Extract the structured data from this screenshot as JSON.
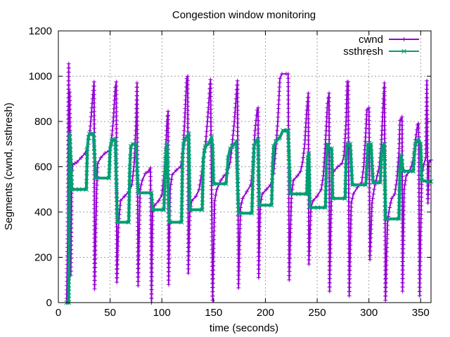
{
  "chart_data": {
    "type": "line",
    "title": "Congestion window monitoring",
    "xlabel": "time (seconds)",
    "ylabel": "Segments (cwnd, ssthresh)",
    "xlim": [
      0,
      360
    ],
    "ylim": [
      0,
      1200
    ],
    "xticks": [
      0,
      50,
      100,
      150,
      200,
      250,
      300,
      350
    ],
    "yticks": [
      0,
      200,
      400,
      600,
      800,
      1000,
      1200
    ],
    "grid": true,
    "legend_position": "top-right",
    "series": [
      {
        "name": "cwnd",
        "color": "#9400d3",
        "marker": "plus",
        "points": [
          [
            8,
            0
          ],
          [
            9,
            300
          ],
          [
            10,
            1055
          ],
          [
            10.3,
            420
          ],
          [
            11,
            930
          ],
          [
            12,
            120
          ],
          [
            13,
            560
          ],
          [
            14,
            610
          ],
          [
            16,
            615
          ],
          [
            18,
            620
          ],
          [
            22,
            640
          ],
          [
            26,
            660
          ],
          [
            29,
            700
          ],
          [
            31,
            780
          ],
          [
            33,
            900
          ],
          [
            34.5,
            975
          ],
          [
            35,
            60
          ],
          [
            37,
            500
          ],
          [
            38,
            615
          ],
          [
            41,
            640
          ],
          [
            45,
            660
          ],
          [
            49,
            670
          ],
          [
            51,
            700
          ],
          [
            53,
            800
          ],
          [
            55,
            950
          ],
          [
            56,
            975
          ],
          [
            56.5,
            90
          ],
          [
            58,
            330
          ],
          [
            60,
            450
          ],
          [
            64,
            470
          ],
          [
            68,
            490
          ],
          [
            71,
            520
          ],
          [
            73,
            600
          ],
          [
            75,
            780
          ],
          [
            76,
            970
          ],
          [
            77,
            75
          ],
          [
            79,
            500
          ],
          [
            81,
            540
          ],
          [
            84,
            570
          ],
          [
            87,
            580
          ],
          [
            89,
            595
          ],
          [
            90,
            0
          ],
          [
            91,
            400
          ],
          [
            93,
            430
          ],
          [
            97,
            450
          ],
          [
            100,
            475
          ],
          [
            102,
            560
          ],
          [
            104,
            700
          ],
          [
            105,
            800
          ],
          [
            106,
            845
          ],
          [
            106.5,
            80
          ],
          [
            108,
            500
          ],
          [
            110,
            565
          ],
          [
            114,
            585
          ],
          [
            118,
            600
          ],
          [
            120,
            640
          ],
          [
            122,
            800
          ],
          [
            124,
            990
          ],
          [
            125,
            1000
          ],
          [
            125.5,
            130
          ],
          [
            127,
            400
          ],
          [
            129,
            450
          ],
          [
            133,
            470
          ],
          [
            136,
            500
          ],
          [
            138,
            560
          ],
          [
            140,
            620
          ],
          [
            142,
            690
          ],
          [
            144,
            800
          ],
          [
            147,
            985
          ],
          [
            149,
            10
          ],
          [
            151,
            450
          ],
          [
            153,
            500
          ],
          [
            157,
            540
          ],
          [
            160,
            560
          ],
          [
            163,
            570
          ],
          [
            166,
            620
          ],
          [
            168,
            700
          ],
          [
            170,
            800
          ],
          [
            173,
            980
          ],
          [
            174,
            65
          ],
          [
            176,
            420
          ],
          [
            178,
            460
          ],
          [
            182,
            490
          ],
          [
            186,
            520
          ],
          [
            188,
            600
          ],
          [
            190,
            760
          ],
          [
            192,
            850
          ],
          [
            193,
            860
          ],
          [
            193.5,
            110
          ],
          [
            195,
            430
          ],
          [
            197,
            480
          ],
          [
            201,
            500
          ],
          [
            205,
            520
          ],
          [
            208,
            570
          ],
          [
            210,
            680
          ],
          [
            212,
            800
          ],
          [
            214,
            990
          ],
          [
            216,
            1010
          ],
          [
            220,
            1010
          ],
          [
            222,
            1010
          ],
          [
            223,
            100
          ],
          [
            225,
            460
          ],
          [
            227,
            540
          ],
          [
            231,
            560
          ],
          [
            234,
            580
          ],
          [
            236,
            620
          ],
          [
            238,
            700
          ],
          [
            240,
            850
          ],
          [
            241.5,
            925
          ],
          [
            242,
            170
          ],
          [
            244,
            420
          ],
          [
            246,
            450
          ],
          [
            250,
            470
          ],
          [
            254,
            500
          ],
          [
            256,
            560
          ],
          [
            258,
            700
          ],
          [
            260,
            880
          ],
          [
            261.5,
            925
          ],
          [
            262,
            50
          ],
          [
            264,
            540
          ],
          [
            266,
            580
          ],
          [
            270,
            600
          ],
          [
            274,
            615
          ],
          [
            276,
            650
          ],
          [
            278,
            800
          ],
          [
            279,
            975
          ],
          [
            280,
            975
          ],
          [
            281,
            30
          ],
          [
            283,
            440
          ],
          [
            285,
            480
          ],
          [
            289,
            510
          ],
          [
            293,
            530
          ],
          [
            295,
            600
          ],
          [
            297,
            750
          ],
          [
            298,
            850
          ],
          [
            300,
            860
          ],
          [
            301,
            190
          ],
          [
            303,
            440
          ],
          [
            305,
            500
          ],
          [
            308,
            560
          ],
          [
            310,
            600
          ],
          [
            312,
            700
          ],
          [
            314,
            900
          ],
          [
            315,
            970
          ],
          [
            316,
            10
          ],
          [
            318,
            360
          ],
          [
            320,
            420
          ],
          [
            322,
            460
          ],
          [
            325,
            480
          ],
          [
            327,
            540
          ],
          [
            329,
            660
          ],
          [
            330,
            805
          ],
          [
            332,
            820
          ],
          [
            332.5,
            50
          ],
          [
            334,
            500
          ],
          [
            336,
            560
          ],
          [
            339,
            580
          ],
          [
            341,
            600
          ],
          [
            343,
            640
          ],
          [
            345,
            720
          ],
          [
            347,
            785
          ],
          [
            348,
            790
          ],
          [
            349,
            30
          ],
          [
            351,
            560
          ],
          [
            353,
            610
          ],
          [
            355,
            640
          ],
          [
            356,
            980
          ],
          [
            357,
            440
          ],
          [
            358,
            620
          ],
          [
            360,
            630
          ]
        ]
      },
      {
        "name": "ssthresh",
        "color": "#009e73",
        "marker": "cross",
        "points": [
          [
            8,
            0
          ],
          [
            10,
            0
          ],
          [
            11,
            745
          ],
          [
            12,
            640
          ],
          [
            13,
            500
          ],
          [
            27,
            500
          ],
          [
            28,
            680
          ],
          [
            29,
            730
          ],
          [
            30,
            745
          ],
          [
            34,
            745
          ],
          [
            36,
            550
          ],
          [
            49,
            550
          ],
          [
            50,
            680
          ],
          [
            51,
            700
          ],
          [
            52,
            720
          ],
          [
            55,
            720
          ],
          [
            57,
            355
          ],
          [
            68,
            355
          ],
          [
            69,
            600
          ],
          [
            70,
            690
          ],
          [
            72,
            700
          ],
          [
            75,
            700
          ],
          [
            77,
            485
          ],
          [
            90,
            485
          ],
          [
            91,
            410
          ],
          [
            102,
            410
          ],
          [
            103,
            560
          ],
          [
            104,
            680
          ],
          [
            105,
            700
          ],
          [
            107,
            355
          ],
          [
            119,
            355
          ],
          [
            120,
            650
          ],
          [
            121,
            700
          ],
          [
            122,
            720
          ],
          [
            126,
            745
          ],
          [
            127,
            410
          ],
          [
            139,
            410
          ],
          [
            140,
            630
          ],
          [
            141,
            670
          ],
          [
            142,
            690
          ],
          [
            145,
            700
          ],
          [
            148,
            730
          ],
          [
            149,
            690
          ],
          [
            150,
            525
          ],
          [
            162,
            525
          ],
          [
            163,
            580
          ],
          [
            164,
            640
          ],
          [
            166,
            680
          ],
          [
            168,
            690
          ],
          [
            172,
            710
          ],
          [
            174,
            395
          ],
          [
            187,
            395
          ],
          [
            188,
            580
          ],
          [
            189,
            690
          ],
          [
            191,
            715
          ],
          [
            193,
            720
          ],
          [
            194,
            430
          ],
          [
            206,
            430
          ],
          [
            207,
            610
          ],
          [
            208,
            690
          ],
          [
            210,
            710
          ],
          [
            213,
            725
          ],
          [
            214,
            730
          ],
          [
            217,
            760
          ],
          [
            221,
            760
          ],
          [
            222,
            760
          ],
          [
            224,
            480
          ],
          [
            240,
            480
          ],
          [
            241,
            640
          ],
          [
            242,
            660
          ],
          [
            243,
            420
          ],
          [
            258,
            420
          ],
          [
            259,
            620
          ],
          [
            260,
            700
          ],
          [
            262,
            680
          ],
          [
            264,
            680
          ],
          [
            265,
            460
          ],
          [
            277,
            460
          ],
          [
            278,
            640
          ],
          [
            279,
            700
          ],
          [
            282,
            700
          ],
          [
            284,
            520
          ],
          [
            297,
            520
          ],
          [
            298,
            600
          ],
          [
            299,
            700
          ],
          [
            302,
            700
          ],
          [
            304,
            530
          ],
          [
            311,
            530
          ],
          [
            312,
            640
          ],
          [
            313,
            690
          ],
          [
            315,
            700
          ],
          [
            316,
            370
          ],
          [
            329,
            370
          ],
          [
            330,
            600
          ],
          [
            331,
            650
          ],
          [
            332,
            620
          ],
          [
            333,
            580
          ],
          [
            343,
            580
          ],
          [
            344,
            660
          ],
          [
            345,
            700
          ],
          [
            346,
            710
          ],
          [
            348,
            720
          ],
          [
            350,
            700
          ],
          [
            351,
            540
          ],
          [
            357,
            535
          ],
          [
            360,
            535
          ]
        ]
      }
    ]
  }
}
